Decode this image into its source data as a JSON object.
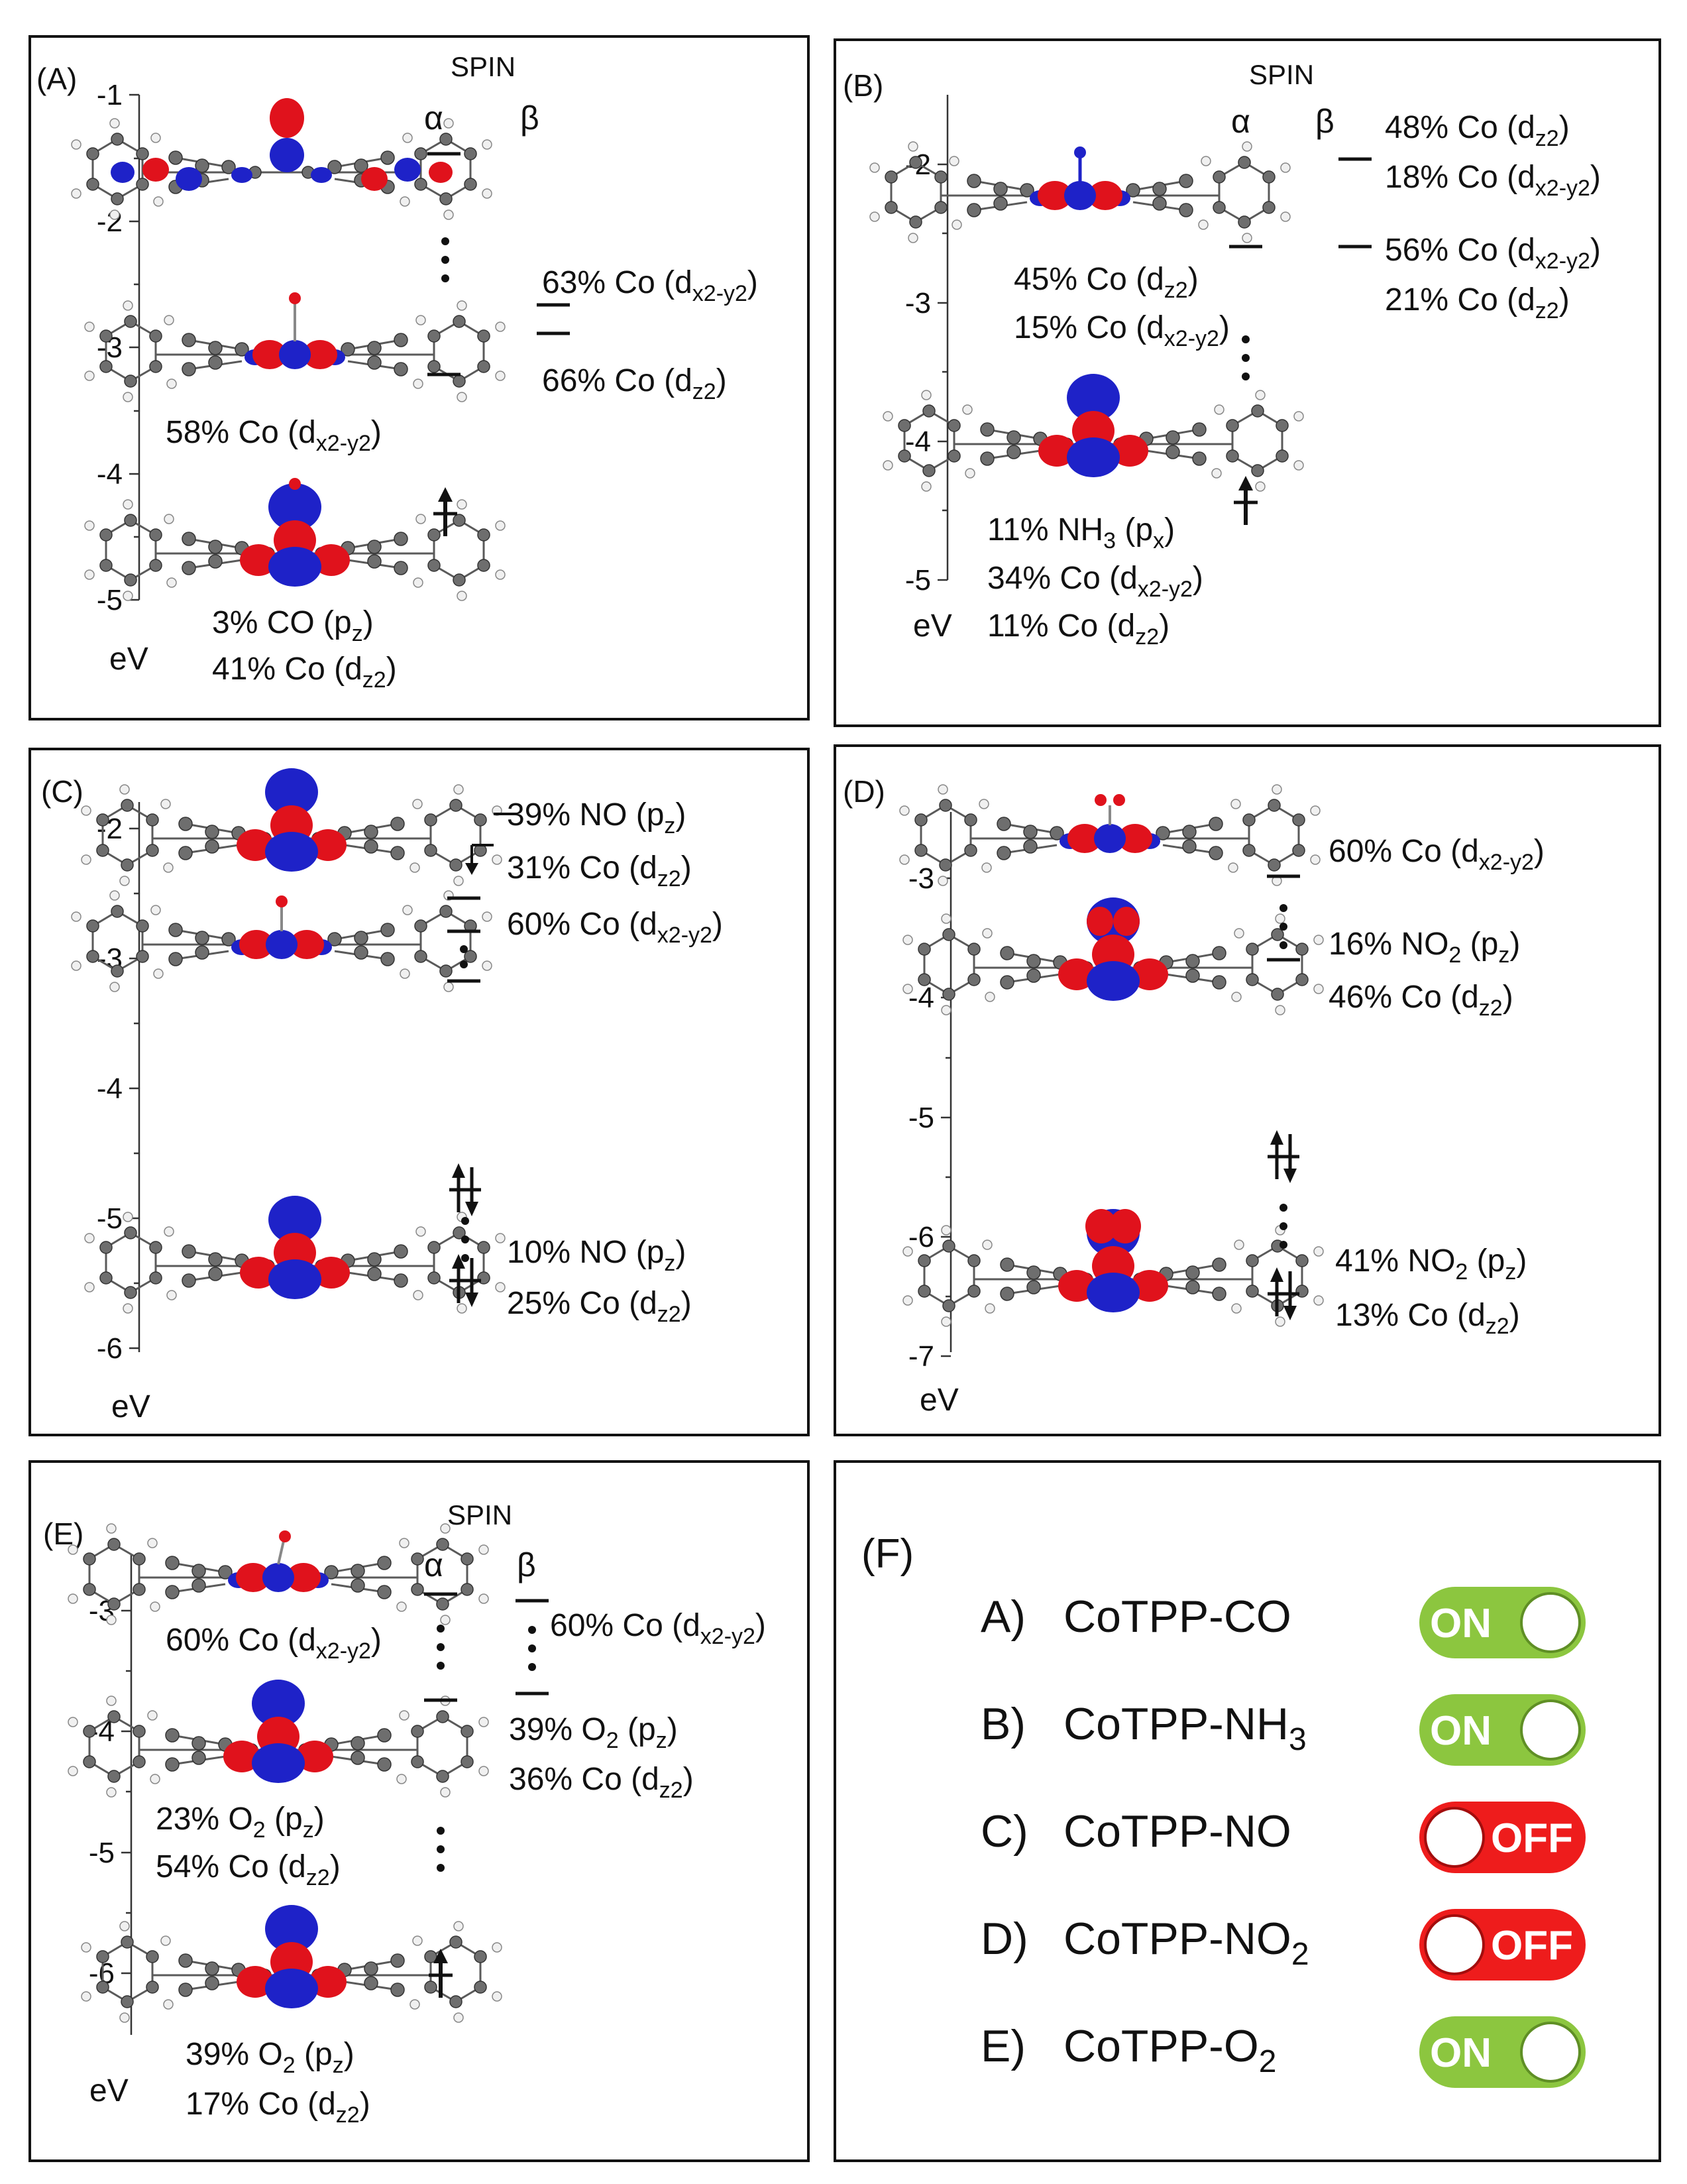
{
  "panels": [
    {
      "id": "A",
      "tag": "(A)",
      "spin": "SPIN",
      "alpha": "α",
      "beta": "β",
      "unit": "eV",
      "ticks": [
        "-1",
        "-2",
        "-3",
        "-4",
        "-5"
      ],
      "labels": [
        [
          "63% Co (d",
          "x2-y2",
          ")"
        ],
        [
          "66% Co (d",
          "z2",
          ")"
        ],
        [
          "58% Co (d",
          "x2-y2",
          ")"
        ],
        [
          "3% CO (p",
          "z",
          ")"
        ],
        [
          "41% Co (d",
          "z2",
          ")"
        ]
      ]
    },
    {
      "id": "B",
      "tag": "(B)",
      "spin": "SPIN",
      "alpha": "α",
      "beta": "β",
      "unit": "eV",
      "ticks": [
        "-2",
        "-3",
        "-4",
        "-5"
      ],
      "labels": [
        [
          "48% Co (d",
          "z2",
          ")"
        ],
        [
          "18% Co (d",
          "x2-y2",
          ")"
        ],
        [
          "56% Co (d",
          "x2-y2",
          ")"
        ],
        [
          "21% Co (d",
          "z2",
          ")"
        ],
        [
          "45% Co (d",
          "z2",
          ")"
        ],
        [
          "15% Co (d",
          "x2-y2",
          ")"
        ],
        [
          "11% NH",
          "3",
          " (p",
          "x",
          ")"
        ],
        [
          "34% Co (d",
          "x2-y2",
          ")"
        ],
        [
          "11% Co (d",
          "z2",
          ")"
        ]
      ]
    },
    {
      "id": "C",
      "tag": "(C)",
      "unit": "eV",
      "ticks": [
        "-2",
        "-3",
        "-4",
        "-5",
        "-6"
      ],
      "labels": [
        [
          "39% NO (p",
          "z",
          ")"
        ],
        [
          "31% Co (d",
          "z2",
          ")"
        ],
        [
          "60% Co (d",
          "x2-y2",
          ")"
        ],
        [
          "10% NO (p",
          "z",
          ")"
        ],
        [
          "25% Co (d",
          "z2",
          ")"
        ]
      ]
    },
    {
      "id": "D",
      "tag": "(D)",
      "unit": "eV",
      "ticks": [
        "-3",
        "-4",
        "-5",
        "-6",
        "-7"
      ],
      "labels": [
        [
          "60% Co (d",
          "x2-y2",
          ")"
        ],
        [
          "16% NO",
          "2",
          " (p",
          "z",
          ")"
        ],
        [
          "46% Co (d",
          "z2",
          ")"
        ],
        [
          "41% NO",
          "2",
          " (p",
          "z",
          ")"
        ],
        [
          "13% Co (d",
          "z2",
          ")"
        ]
      ]
    },
    {
      "id": "E",
      "tag": "(E)",
      "spin": "SPIN",
      "alpha": "α",
      "beta": "β",
      "unit": "eV",
      "ticks": [
        "-3",
        "-4",
        "-5",
        "-6"
      ],
      "labels": [
        [
          "60% Co (d",
          "x2-y2",
          ")"
        ],
        [
          "60% Co (d",
          "x2-y2",
          ")"
        ],
        [
          "39% O",
          "2",
          " (p",
          "z",
          ")"
        ],
        [
          "36% Co (d",
          "z2",
          ")"
        ],
        [
          "23% O",
          "2",
          " (p",
          "z",
          ")"
        ],
        [
          "54% Co (d",
          "z2",
          ")"
        ],
        [
          "39% O",
          "2",
          " (p",
          "z",
          ")"
        ],
        [
          "17% Co (d",
          "z2",
          ")"
        ]
      ]
    }
  ],
  "panel_f": {
    "tag": "(F)",
    "rows": [
      {
        "letter": "A)",
        "name": [
          "CoTPP-CO"
        ],
        "state": "ON"
      },
      {
        "letter": "B)",
        "name": [
          "CoTPP-NH",
          "3",
          ""
        ],
        "state": "ON"
      },
      {
        "letter": "C)",
        "name": [
          "CoTPP-NO"
        ],
        "state": "OFF"
      },
      {
        "letter": "D)",
        "name": [
          "CoTPP-NO",
          "2",
          ""
        ],
        "state": "OFF"
      },
      {
        "letter": "E)",
        "name": [
          "CoTPP-O",
          "2",
          ""
        ],
        "state": "ON"
      }
    ]
  },
  "colors": {
    "on": "#8cc63f",
    "off": "#ee1c1c",
    "lobe_red": "#e0121c",
    "lobe_blue": "#1e22c8",
    "carbon": "#6e6e6e",
    "hydrogen": "#f0f0f0"
  }
}
